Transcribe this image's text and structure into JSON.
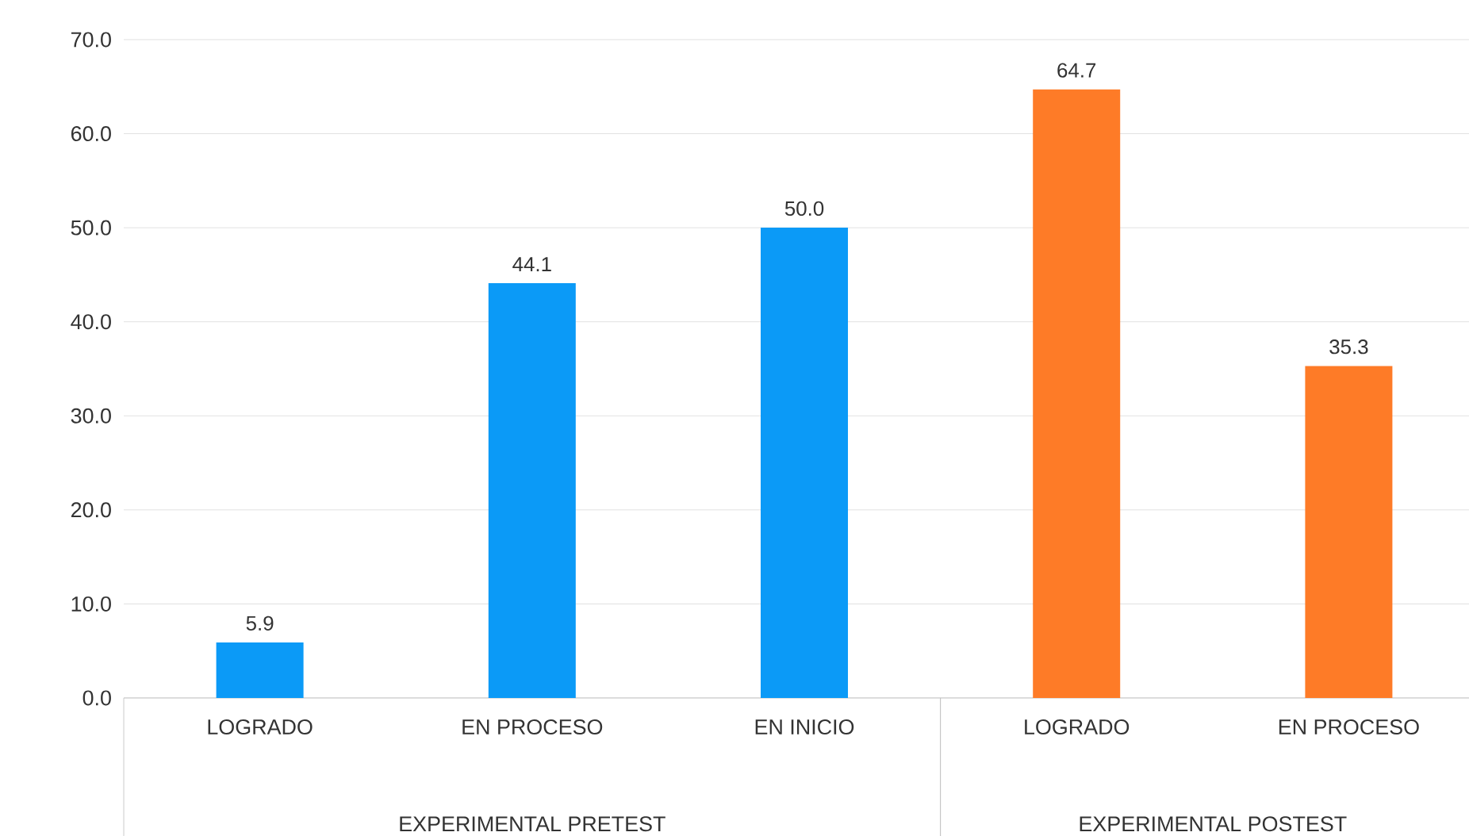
{
  "chart_data": {
    "type": "bar",
    "categories": [
      "LOGRADO",
      "EN PROCESO",
      "EN INICIO",
      "LOGRADO",
      "EN PROCESO"
    ],
    "series": [
      {
        "color": "#0b9af7",
        "values": [
          5.9,
          44.1,
          50.0,
          null,
          null
        ],
        "value_labels": [
          "5.9",
          "44.1",
          "50.0",
          null,
          null
        ]
      },
      {
        "color": "#fe7b27",
        "values": [
          null,
          null,
          null,
          64.7,
          35.3
        ],
        "value_labels": [
          null,
          null,
          null,
          "64.7",
          "35.3"
        ]
      }
    ],
    "annotations": [
      "EXPERIMENTAL PRETEST",
      "EXPERIMENTAL POSTEST"
    ],
    "ylim": [
      0,
      70
    ],
    "yticks": [
      {
        "value": 0,
        "label": "0.0"
      },
      {
        "value": 10,
        "label": "10.0"
      },
      {
        "value": 20,
        "label": "20.0"
      },
      {
        "value": 30,
        "label": "30.0"
      },
      {
        "value": 40,
        "label": "40.0"
      },
      {
        "value": 50,
        "label": "50.0"
      },
      {
        "value": 60,
        "label": "60.0"
      },
      {
        "value": 70,
        "label": "70.0"
      }
    ],
    "grid": "y"
  }
}
